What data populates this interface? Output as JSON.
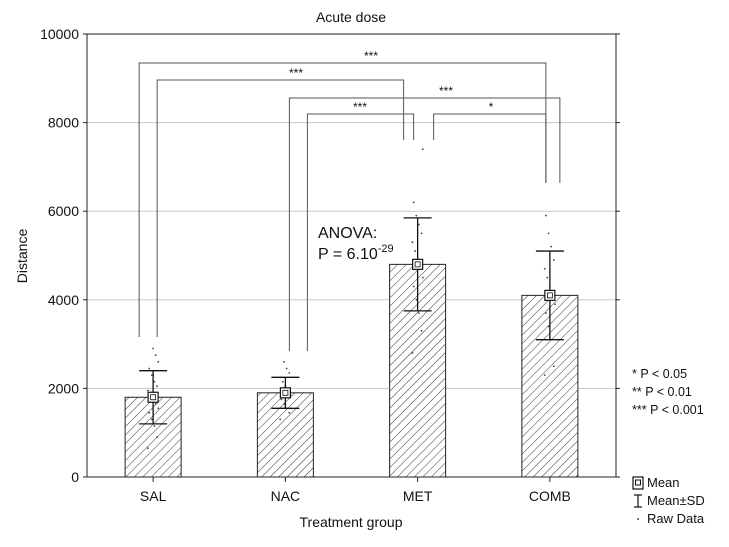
{
  "chart_data": {
    "type": "bar",
    "title": "Acute dose",
    "xlabel": "Treatment group",
    "ylabel": "Distance",
    "categories": [
      "SAL",
      "NAC",
      "MET",
      "COMB"
    ],
    "values": [
      1800,
      1900,
      4800,
      4100
    ],
    "sd": [
      600,
      350,
      1050,
      1000
    ],
    "ylim": [
      0,
      10000
    ],
    "yticks": [
      "0",
      "2000",
      "4000",
      "6000",
      "8000",
      "10000"
    ],
    "grid": true,
    "raw_data": [
      [
        650,
        900,
        1150,
        1300,
        1450,
        1550,
        1650,
        1750,
        1850,
        1950,
        2050,
        2150,
        2300,
        2450,
        2600,
        2750,
        2900
      ],
      [
        1300,
        1450,
        1550,
        1650,
        1750,
        1850,
        1950,
        2050,
        2150,
        2250,
        2350,
        2450,
        2600
      ],
      [
        2800,
        3300,
        3700,
        4000,
        4300,
        4500,
        4700,
        4900,
        5100,
        5300,
        5500,
        5700,
        5900,
        6200,
        7400
      ],
      [
        2300,
        2500,
        3100,
        3400,
        3700,
        3900,
        4100,
        4300,
        4500,
        4700,
        4900,
        5200,
        5500,
        5900
      ]
    ],
    "comparisons": [
      {
        "from": "SAL",
        "to": "COMB",
        "label": "***"
      },
      {
        "from": "SAL",
        "to": "MET",
        "label": "***"
      },
      {
        "from": "NAC",
        "to": "COMB",
        "label": "***"
      },
      {
        "from": "NAC",
        "to": "MET",
        "label": "***"
      },
      {
        "from": "MET",
        "to": "COMB",
        "label": "*"
      }
    ],
    "annotation": {
      "line1": "ANOVA:",
      "line2": "P = 6.10",
      "exponent": "-29"
    },
    "significance_key": [
      "*  P < 0.05",
      "** P < 0.01",
      "*** P < 0.001"
    ],
    "legend": {
      "mean": "Mean",
      "sd": "Mean±SD",
      "raw": "Raw Data"
    },
    "colors": {
      "bar_edge": "#222222",
      "hatch": "#333333",
      "grid": "#c8c8c8",
      "bracket": "#555555"
    }
  }
}
